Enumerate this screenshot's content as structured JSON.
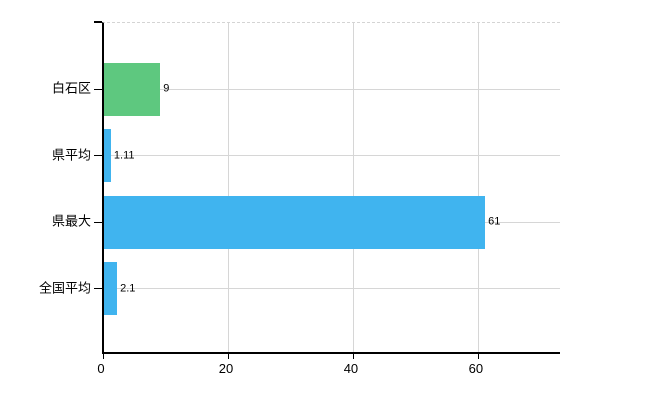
{
  "chart_data": {
    "type": "bar",
    "orientation": "horizontal",
    "title": "",
    "xlabel": "",
    "ylabel": "",
    "categories": [
      "白石区",
      "県平均",
      "県最大",
      "全国平均"
    ],
    "values": [
      9,
      1.11,
      61,
      2.1
    ],
    "value_labels": [
      "9",
      "1.11",
      "61",
      "2.1"
    ],
    "bar_colors": [
      "#5ec87f",
      "#40b4ef",
      "#40b4ef",
      "#40b4ef"
    ],
    "highlight_category": "白石区",
    "x_ticks": [
      0,
      20,
      40,
      60
    ],
    "x_tick_labels": [
      "0",
      "20",
      "40",
      "60"
    ],
    "xlim": [
      0,
      73.3
    ],
    "grid": true,
    "legend": false
  },
  "colors": {
    "background": "#ffffff",
    "axis": "#000000",
    "gridline": "#d6d6d6",
    "top_border_dashed": "#d4d4d4",
    "bar_green": "#5ec87f",
    "bar_blue": "#40b4ef",
    "text": "#000000"
  }
}
